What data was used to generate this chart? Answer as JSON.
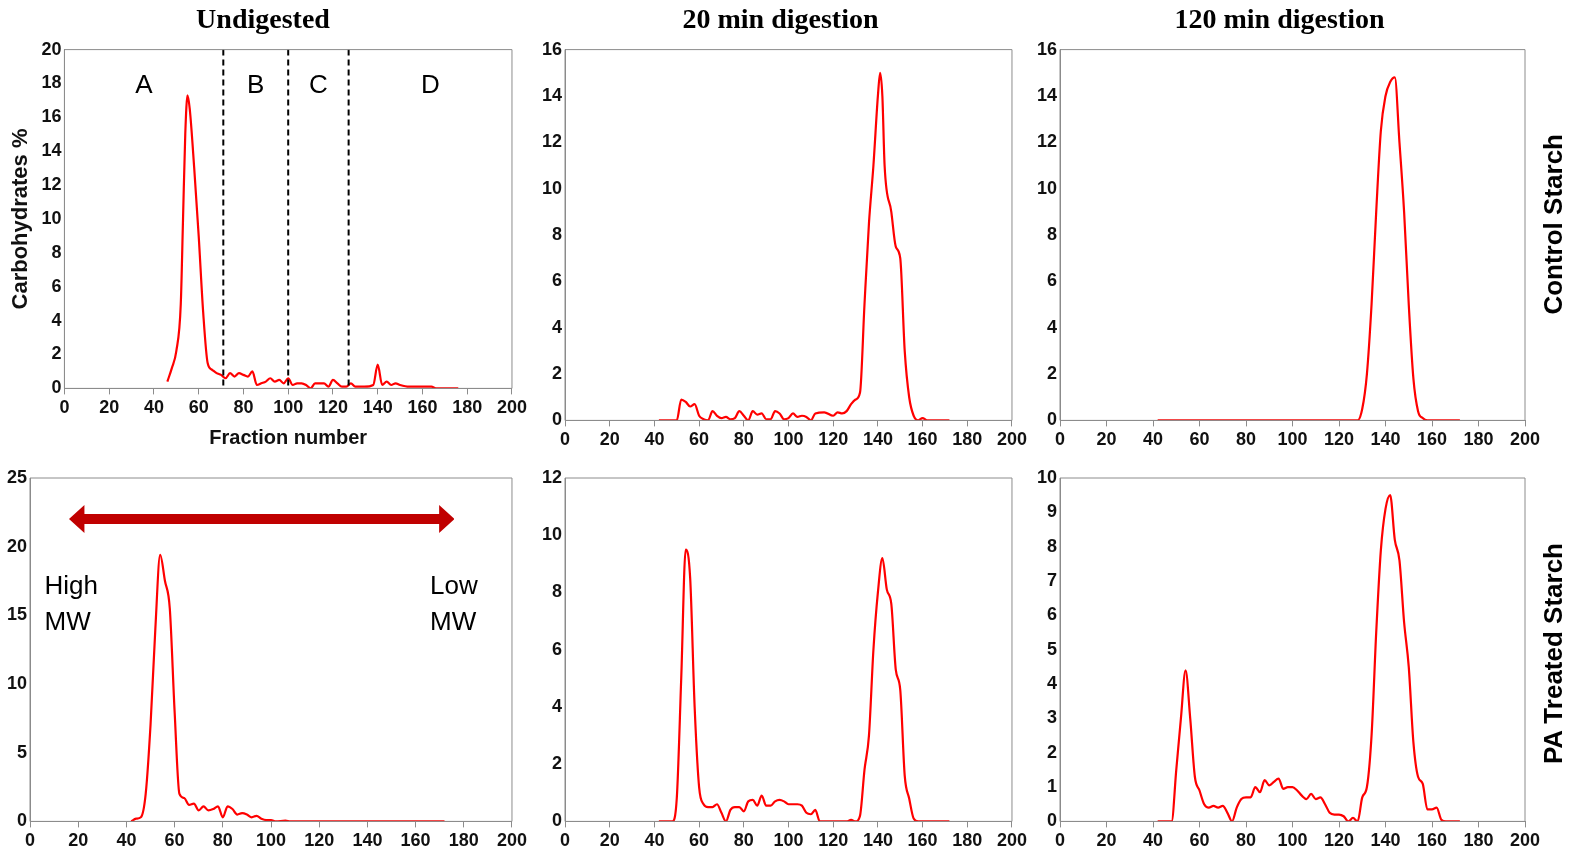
{
  "chart_data": [
    {
      "type": "line",
      "title": "Undigested",
      "xlabel": "Fraction number",
      "ylabel": "Carbohydrates %",
      "xlim": [
        0,
        200
      ],
      "xticks": [
        0,
        20,
        40,
        60,
        80,
        100,
        120,
        140,
        160,
        180,
        200
      ],
      "ylim": [
        0,
        20
      ],
      "yticks": [
        0,
        2,
        4,
        6,
        8,
        10,
        12,
        14,
        16,
        18,
        20
      ],
      "grid": false,
      "legend": false,
      "marker": "none",
      "line_style": "solid",
      "x": [
        46,
        48,
        50,
        52,
        53,
        54,
        55,
        56,
        58,
        60,
        62,
        64,
        66,
        68,
        70,
        72,
        74,
        76,
        78,
        80,
        82,
        84,
        86,
        88,
        90,
        92,
        94,
        96,
        98,
        100,
        102,
        104,
        106,
        108,
        110,
        112,
        114,
        116,
        118,
        120,
        122,
        124,
        126,
        128,
        130,
        134,
        138,
        140,
        142,
        144,
        146,
        148,
        150,
        154,
        158,
        162,
        164,
        166,
        176
      ],
      "series": [
        {
          "color": "#ff0000",
          "values": [
            0.4,
            1.2,
            2.2,
            5,
            10,
            15,
            17.3,
            16.5,
            13,
            9,
            4.5,
            1.5,
            1.1,
            0.9,
            0.8,
            0.6,
            0.9,
            0.7,
            0.9,
            0.8,
            0.7,
            1.0,
            0.2,
            0.3,
            0.4,
            0.6,
            0.4,
            0.5,
            0.3,
            0.6,
            0.2,
            0.3,
            0.3,
            0.2,
            0,
            0.3,
            0.3,
            0.3,
            0.1,
            0.5,
            0.3,
            0.1,
            0.1,
            0.3,
            0.1,
            0.1,
            0.2,
            1.4,
            0.2,
            0.4,
            0.2,
            0.3,
            0.2,
            0.1,
            0.1,
            0.1,
            0.1,
            0,
            0
          ]
        }
      ],
      "ref_lines": [
        {
          "axis": "x",
          "value": 71,
          "color": "#000000",
          "line_style": "dashed"
        },
        {
          "axis": "x",
          "value": 100,
          "color": "#000000",
          "line_style": "dashed"
        },
        {
          "axis": "x",
          "value": 127,
          "color": "#000000",
          "line_style": "dashed"
        }
      ],
      "annotations": [
        "A",
        "B",
        "C",
        "D"
      ]
    },
    {
      "type": "line",
      "title": "20 min digestion",
      "xlim": [
        0,
        200
      ],
      "xticks": [
        0,
        20,
        40,
        60,
        80,
        100,
        120,
        140,
        160,
        180,
        200
      ],
      "ylim": [
        0,
        16
      ],
      "yticks": [
        0,
        2,
        4,
        6,
        8,
        10,
        12,
        14,
        16
      ],
      "grid": false,
      "legend": false,
      "marker": "none",
      "line_style": "solid",
      "x": [
        42,
        50,
        52,
        54,
        56,
        58,
        60,
        62,
        64,
        66,
        68,
        70,
        72,
        74,
        76,
        78,
        80,
        82,
        84,
        86,
        88,
        90,
        92,
        94,
        96,
        98,
        100,
        102,
        104,
        106,
        108,
        110,
        112,
        116,
        120,
        122,
        124,
        126,
        128,
        130,
        132,
        134,
        136,
        138,
        140,
        141,
        142,
        143,
        146,
        148,
        150,
        152,
        154,
        156,
        158,
        160,
        162,
        172
      ],
      "series": [
        {
          "color": "#ff0000",
          "values": [
            0,
            0,
            0.9,
            0.8,
            0.6,
            0.7,
            0.2,
            0.05,
            0,
            0.4,
            0.2,
            0.1,
            0.15,
            0.05,
            0.1,
            0.4,
            0.2,
            0,
            0.4,
            0.25,
            0.3,
            0.05,
            0.05,
            0.4,
            0.3,
            0.05,
            0.1,
            0.3,
            0.15,
            0.2,
            0.15,
            0,
            0.3,
            0.35,
            0.2,
            0.35,
            0.3,
            0.4,
            0.7,
            0.9,
            1.2,
            5,
            8.5,
            11,
            14,
            15,
            14,
            11,
            9,
            7.5,
            7,
            3,
            1,
            0.2,
            0,
            0.1,
            0,
            0
          ]
        }
      ]
    },
    {
      "type": "line",
      "title": "120 min digestion",
      "y2label": "Control Starch",
      "xlim": [
        0,
        200
      ],
      "xticks": [
        0,
        20,
        40,
        60,
        80,
        100,
        120,
        140,
        160,
        180,
        200
      ],
      "ylim": [
        0,
        16
      ],
      "yticks": [
        0,
        2,
        4,
        6,
        8,
        10,
        12,
        14,
        16
      ],
      "grid": false,
      "legend": false,
      "marker": "none",
      "line_style": "solid",
      "x": [
        42,
        126,
        128,
        130,
        132,
        134,
        136,
        138,
        140,
        142,
        144,
        146,
        148,
        150,
        152,
        154,
        156,
        158,
        172
      ],
      "series": [
        {
          "color": "#ff0000",
          "values": [
            0,
            0,
            0,
            0.5,
            2,
            5,
            9,
            12.5,
            14,
            14.6,
            14.8,
            12,
            9,
            5,
            1.8,
            0.4,
            0.1,
            0,
            0
          ]
        }
      ]
    },
    {
      "type": "line",
      "xlim": [
        0,
        200
      ],
      "xticks": [
        0,
        20,
        40,
        60,
        80,
        100,
        120,
        140,
        160,
        180,
        200
      ],
      "ylim": [
        0,
        25
      ],
      "yticks": [
        0,
        5,
        10,
        15,
        20,
        25
      ],
      "grid": false,
      "legend": false,
      "marker": "none",
      "line_style": "solid",
      "x": [
        42,
        44,
        46,
        48,
        50,
        52,
        54,
        56,
        58,
        60,
        62,
        64,
        66,
        68,
        70,
        72,
        74,
        76,
        78,
        80,
        82,
        84,
        86,
        88,
        90,
        92,
        94,
        96,
        98,
        100,
        102,
        106,
        108,
        172
      ],
      "series": [
        {
          "color": "#ff0000",
          "values": [
            0,
            0.2,
            0.3,
            2,
            7,
            14,
            19.4,
            17.5,
            15.5,
            8,
            2,
            1.7,
            1.2,
            1.3,
            0.8,
            1.1,
            0.8,
            0.9,
            1.1,
            0.3,
            1.1,
            0.9,
            0.5,
            0.6,
            0.5,
            0.3,
            0.4,
            0.2,
            0.1,
            0.1,
            0,
            0.05,
            0,
            0
          ]
        }
      ],
      "annotations": [
        "High MW",
        "Low MW"
      ]
    },
    {
      "type": "line",
      "xlim": [
        0,
        200
      ],
      "xticks": [
        0,
        20,
        40,
        60,
        80,
        100,
        120,
        140,
        160,
        180,
        200
      ],
      "ylim": [
        0,
        12
      ],
      "yticks": [
        0,
        2,
        4,
        6,
        8,
        10,
        12
      ],
      "grid": false,
      "legend": false,
      "marker": "none",
      "line_style": "solid",
      "x": [
        42,
        48,
        50,
        52,
        54,
        56,
        58,
        60,
        62,
        64,
        66,
        68,
        70,
        72,
        74,
        76,
        78,
        80,
        82,
        84,
        86,
        88,
        90,
        92,
        94,
        96,
        98,
        100,
        104,
        106,
        108,
        110,
        112,
        114,
        116,
        126,
        128,
        130,
        132,
        134,
        136,
        138,
        140,
        142,
        144,
        146,
        148,
        150,
        152,
        154,
        156,
        158,
        172
      ],
      "series": [
        {
          "color": "#ff0000",
          "values": [
            0,
            0,
            0.8,
            5,
            9.5,
            8.5,
            4,
            1.2,
            0.6,
            0.5,
            0.5,
            0.6,
            0.3,
            0,
            0.4,
            0.5,
            0.5,
            0.35,
            0.7,
            0.75,
            0.55,
            0.9,
            0.55,
            0.55,
            0.7,
            0.75,
            0.7,
            0.6,
            0.6,
            0.55,
            0.3,
            0.25,
            0.4,
            0,
            0,
            0,
            0.05,
            0,
            0.2,
            1.8,
            3,
            6,
            8,
            9.2,
            8.1,
            7.6,
            5.3,
            4.6,
            1.6,
            0.8,
            0.1,
            0,
            0
          ]
        }
      ]
    },
    {
      "type": "line",
      "y2label": "PA Treated Starch",
      "xlim": [
        0,
        200
      ],
      "xticks": [
        0,
        20,
        40,
        60,
        80,
        100,
        120,
        140,
        160,
        180,
        200
      ],
      "ylim": [
        0,
        10
      ],
      "yticks": [
        0,
        1,
        2,
        3,
        4,
        5,
        6,
        7,
        8,
        9,
        10
      ],
      "grid": false,
      "legend": false,
      "marker": "none",
      "line_style": "solid",
      "x": [
        42,
        48,
        50,
        52,
        54,
        56,
        58,
        60,
        62,
        64,
        66,
        68,
        70,
        72,
        74,
        76,
        78,
        80,
        82,
        84,
        86,
        88,
        90,
        92,
        94,
        96,
        98,
        100,
        102,
        104,
        106,
        108,
        110,
        112,
        114,
        116,
        118,
        120,
        122,
        124,
        126,
        128,
        130,
        132,
        134,
        136,
        138,
        140,
        142,
        144,
        146,
        148,
        150,
        152,
        154,
        156,
        158,
        160,
        162,
        164,
        166,
        172
      ],
      "series": [
        {
          "color": "#ff0000",
          "values": [
            0,
            0,
            1.5,
            3,
            4.4,
            3,
            1.3,
            0.9,
            0.5,
            0.4,
            0.45,
            0.4,
            0.45,
            0.25,
            0,
            0.4,
            0.65,
            0.7,
            0.7,
            1.0,
            0.85,
            1.2,
            1.05,
            1.15,
            1.25,
            0.95,
            1.0,
            1.0,
            0.9,
            0.75,
            0.65,
            0.8,
            0.65,
            0.7,
            0.5,
            0.25,
            0.2,
            0.2,
            0.15,
            0,
            0.1,
            0,
            0.7,
            1.0,
            2.5,
            5.5,
            7.9,
            9.1,
            9.5,
            8.2,
            7.6,
            5.8,
            4.5,
            2.3,
            1.3,
            1.1,
            0.35,
            0.35,
            0.4,
            0.05,
            0,
            0
          ]
        }
      ]
    }
  ]
}
